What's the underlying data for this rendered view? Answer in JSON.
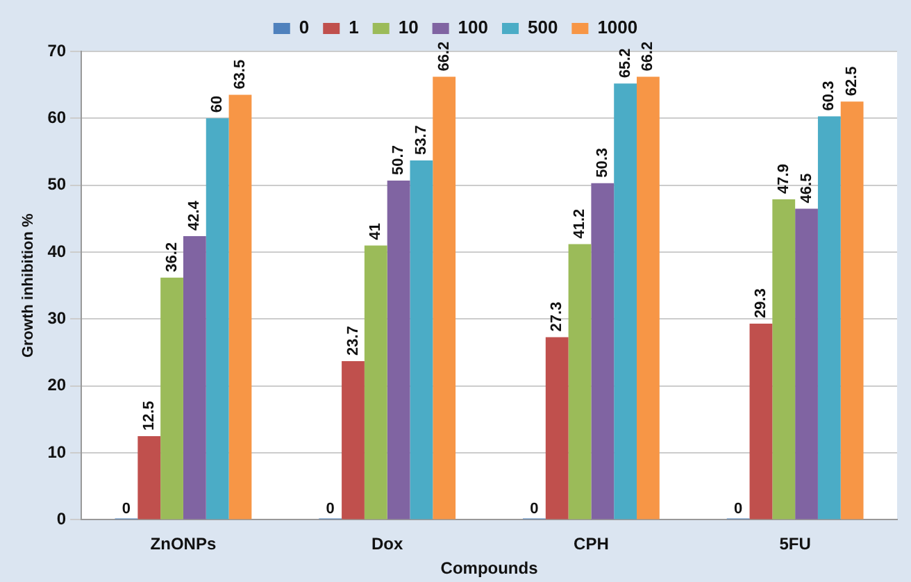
{
  "chart_data": {
    "type": "bar",
    "xlabel": "Compounds",
    "ylabel": "Growth inhibition %",
    "categories": [
      "ZnONPs",
      "Dox",
      "CPH",
      "5FU"
    ],
    "series": [
      {
        "name": "0",
        "color": "#4f81bd",
        "values": [
          0,
          0,
          0,
          0
        ]
      },
      {
        "name": "1",
        "color": "#c0504d",
        "values": [
          12.5,
          23.7,
          27.3,
          29.3
        ]
      },
      {
        "name": "10",
        "color": "#9bbb59",
        "values": [
          36.2,
          41,
          41.2,
          47.9
        ]
      },
      {
        "name": "100",
        "color": "#8064a2",
        "values": [
          42.4,
          50.7,
          50.3,
          46.5
        ]
      },
      {
        "name": "500",
        "color": "#4bacc6",
        "values": [
          60,
          53.7,
          65.2,
          60.3
        ]
      },
      {
        "name": "1000",
        "color": "#f79646",
        "values": [
          63.5,
          66.2,
          66.2,
          62.5
        ]
      }
    ],
    "ylim": [
      0,
      70
    ],
    "yticks": [
      0,
      10,
      20,
      30,
      40,
      50,
      60,
      70
    ],
    "grid": "y",
    "legend": "top",
    "data_labels": true
  }
}
